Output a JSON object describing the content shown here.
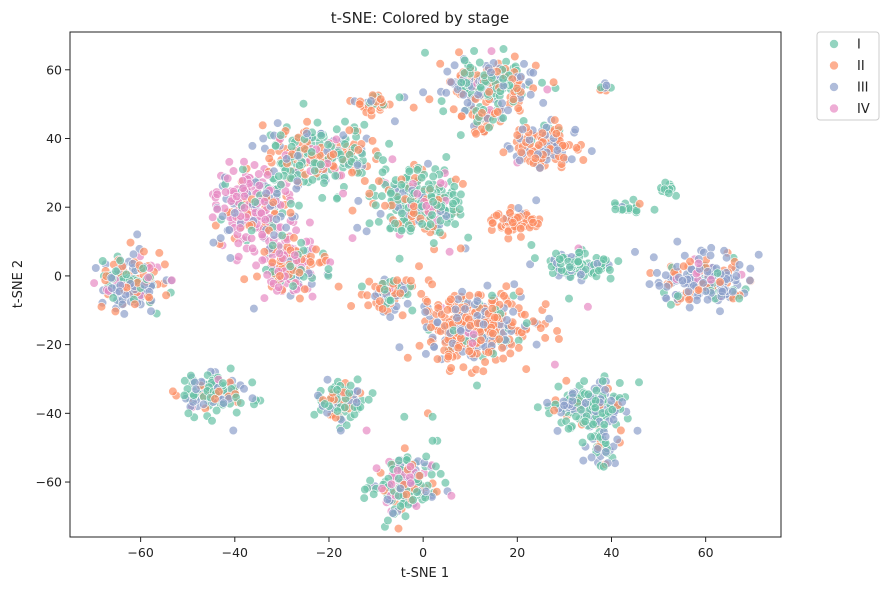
{
  "chart_data": {
    "type": "scatter",
    "title": "t-SNE: Colored by stage",
    "xlabel": "t-SNE 1",
    "ylabel": "t-SNE 2",
    "xlim": [
      -75,
      76
    ],
    "ylim": [
      -76,
      71
    ],
    "xticks": [
      -60,
      -40,
      -20,
      0,
      20,
      40,
      60
    ],
    "yticks": [
      -60,
      -40,
      -20,
      0,
      20,
      40,
      60
    ],
    "grid": false,
    "legend_position": "outside-top-right",
    "marker": "circle",
    "marker_alpha": 0.7,
    "series": [
      {
        "name": "I",
        "color": "#66c2a5"
      },
      {
        "name": "II",
        "color": "#fc8d62"
      },
      {
        "name": "III",
        "color": "#8da0cb"
      },
      {
        "name": "IV",
        "color": "#e78ac3"
      }
    ],
    "clusters": [
      {
        "center": [
          -62,
          -2
        ],
        "spread": [
          3.5,
          4.5
        ],
        "n": 170,
        "mix": [
          0.25,
          0.3,
          0.35,
          0.1
        ]
      },
      {
        "center": [
          -45,
          -34
        ],
        "spread": [
          3.5,
          3
        ],
        "n": 120,
        "mix": [
          0.45,
          0.25,
          0.25,
          0.05
        ]
      },
      {
        "center": [
          -18,
          -37
        ],
        "spread": [
          2.5,
          3
        ],
        "n": 90,
        "mix": [
          0.55,
          0.15,
          0.25,
          0.05
        ]
      },
      {
        "center": [
          -4,
          -61
        ],
        "spread": [
          3.5,
          4
        ],
        "n": 170,
        "mix": [
          0.45,
          0.15,
          0.2,
          0.2
        ]
      },
      {
        "center": [
          -7,
          -5
        ],
        "spread": [
          2.5,
          2.5
        ],
        "n": 80,
        "mix": [
          0.2,
          0.45,
          0.3,
          0.05
        ]
      },
      {
        "center": [
          11,
          -15
        ],
        "spread": [
          6,
          5
        ],
        "n": 360,
        "mix": [
          0.08,
          0.65,
          0.25,
          0.02
        ]
      },
      {
        "center": [
          -36,
          20
        ],
        "spread": [
          4,
          6
        ],
        "n": 230,
        "mix": [
          0.1,
          0.15,
          0.2,
          0.55
        ]
      },
      {
        "center": [
          -22,
          35
        ],
        "spread": [
          6,
          4
        ],
        "n": 260,
        "mix": [
          0.4,
          0.35,
          0.15,
          0.1
        ]
      },
      {
        "center": [
          -28,
          3
        ],
        "spread": [
          3.5,
          4.5
        ],
        "n": 160,
        "mix": [
          0.15,
          0.35,
          0.15,
          0.35
        ]
      },
      {
        "center": [
          -1,
          21
        ],
        "spread": [
          4.5,
          5
        ],
        "n": 240,
        "mix": [
          0.55,
          0.25,
          0.15,
          0.05
        ]
      },
      {
        "center": [
          14,
          55
        ],
        "spread": [
          5,
          4
        ],
        "n": 230,
        "mix": [
          0.3,
          0.3,
          0.35,
          0.05
        ]
      },
      {
        "center": [
          13,
          45
        ],
        "spread": [
          2,
          2
        ],
        "n": 40,
        "mix": [
          0.1,
          0.7,
          0.2,
          0
        ]
      },
      {
        "center": [
          26,
          38
        ],
        "spread": [
          3.5,
          3
        ],
        "n": 110,
        "mix": [
          0.05,
          0.55,
          0.4,
          0
        ]
      },
      {
        "center": [
          -11,
          50
        ],
        "spread": [
          2,
          1.5
        ],
        "n": 30,
        "mix": [
          0.2,
          0.7,
          0.1,
          0
        ]
      },
      {
        "center": [
          19,
          16
        ],
        "spread": [
          2.5,
          2
        ],
        "n": 55,
        "mix": [
          0,
          0.95,
          0.05,
          0
        ]
      },
      {
        "center": [
          33,
          3
        ],
        "spread": [
          3.5,
          2
        ],
        "n": 90,
        "mix": [
          0.75,
          0,
          0.25,
          0
        ]
      },
      {
        "center": [
          36,
          -38
        ],
        "spread": [
          4,
          3.5
        ],
        "n": 170,
        "mix": [
          0.5,
          0.1,
          0.4,
          0
        ]
      },
      {
        "center": [
          38,
          -50
        ],
        "spread": [
          2,
          2.5
        ],
        "n": 40,
        "mix": [
          0.5,
          0.1,
          0.4,
          0
        ]
      },
      {
        "center": [
          60,
          -1
        ],
        "spread": [
          4.5,
          3.5
        ],
        "n": 200,
        "mix": [
          0.15,
          0.25,
          0.55,
          0.05
        ]
      },
      {
        "center": [
          52,
          25
        ],
        "spread": [
          1,
          1.5
        ],
        "n": 14,
        "mix": [
          1,
          0,
          0,
          0
        ]
      },
      {
        "center": [
          44,
          20
        ],
        "spread": [
          2,
          0.8
        ],
        "n": 16,
        "mix": [
          0.8,
          0.1,
          0.1,
          0
        ]
      },
      {
        "center": [
          39,
          55
        ],
        "spread": [
          1,
          0.8
        ],
        "n": 8,
        "mix": [
          0.3,
          0.3,
          0.4,
          0
        ]
      }
    ],
    "isolated_points": [
      [
        -4,
        -41,
        0
      ],
      [
        1,
        -40,
        1
      ],
      [
        2,
        -41,
        0
      ],
      [
        2,
        -48,
        0
      ],
      [
        3,
        -48,
        0
      ],
      [
        6,
        -64,
        3
      ],
      [
        -5,
        5,
        0
      ],
      [
        8,
        8,
        1
      ],
      [
        9,
        8,
        2
      ],
      [
        23,
        9,
        0
      ],
      [
        -8,
        31,
        0
      ],
      [
        -12,
        40,
        2
      ],
      [
        -10,
        34,
        1
      ],
      [
        -8,
        27,
        3
      ],
      [
        -15,
        11,
        3
      ],
      [
        -12,
        13,
        2
      ],
      [
        24,
        22,
        2
      ],
      [
        20,
        33,
        3
      ],
      [
        20,
        41,
        1
      ],
      [
        16,
        18,
        1
      ],
      [
        35,
        -9,
        3
      ],
      [
        50,
        -2,
        2
      ],
      [
        46,
        21,
        1
      ],
      [
        -13,
        30,
        0
      ],
      [
        -7,
        -12,
        2
      ],
      [
        -12,
        -45,
        3
      ],
      [
        8,
        41,
        0
      ],
      [
        33,
        8,
        3
      ],
      [
        45,
        7,
        2
      ],
      [
        -4,
        52,
        2
      ],
      [
        -5,
        52,
        0
      ],
      [
        -2,
        49,
        1
      ],
      [
        -6,
        45,
        2
      ],
      [
        -17,
        24,
        3
      ],
      [
        -43,
        11,
        2
      ],
      [
        -14,
        14,
        2
      ],
      [
        -15,
        19,
        1
      ],
      [
        -32,
        6,
        3
      ],
      [
        -24,
        10,
        3
      ],
      [
        -5,
        12,
        3
      ],
      [
        20,
        17,
        1
      ],
      [
        27,
        37,
        1
      ]
    ]
  }
}
